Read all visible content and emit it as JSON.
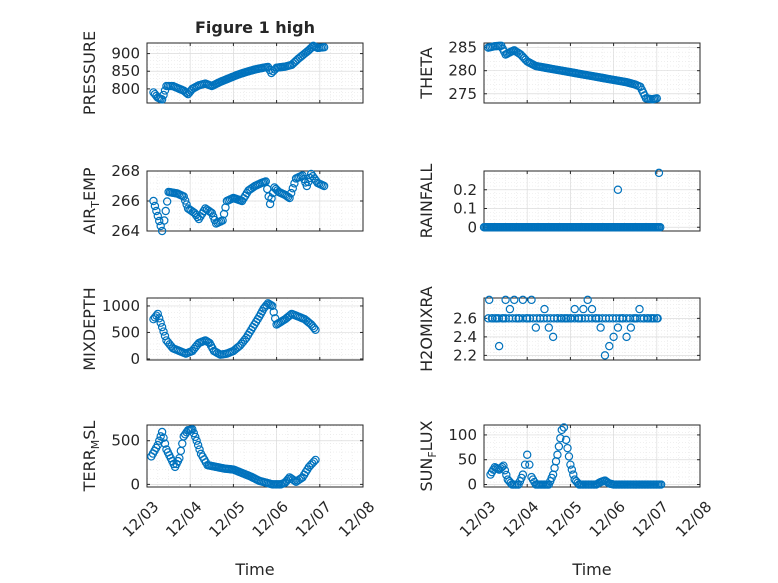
{
  "figure": {
    "title": "Figure 1 high"
  },
  "chart_data": [
    {
      "type": "scatter",
      "name": "PRESSURE",
      "title": "Figure 1 high",
      "ylabel": "PRESSURE",
      "xlabel": "",
      "xlim": [
        0,
        5
      ],
      "ylim": [
        760,
        930
      ],
      "yticks": [
        800,
        850,
        900
      ],
      "ytick_labels": [
        "800",
        "850",
        "900"
      ],
      "xticks": [
        0,
        1,
        2,
        3,
        4,
        5
      ],
      "xtick_labels": [
        "12/03",
        "12/04",
        "12/05",
        "12/06",
        "12/07",
        "12/08"
      ],
      "show_xtick_labels": false,
      "grid": true,
      "marker": "o",
      "color": "#0072bd",
      "keypoints": [
        [
          0.15,
          790
        ],
        [
          0.25,
          775
        ],
        [
          0.35,
          770
        ],
        [
          0.45,
          808
        ],
        [
          0.6,
          808
        ],
        [
          0.75,
          800
        ],
        [
          0.85,
          795
        ],
        [
          0.95,
          785
        ],
        [
          1.05,
          800
        ],
        [
          1.2,
          810
        ],
        [
          1.35,
          815
        ],
        [
          1.5,
          808
        ],
        [
          1.7,
          820
        ],
        [
          1.9,
          830
        ],
        [
          2.1,
          840
        ],
        [
          2.3,
          848
        ],
        [
          2.5,
          855
        ],
        [
          2.7,
          860
        ],
        [
          2.8,
          862
        ],
        [
          2.88,
          845
        ],
        [
          3.0,
          860
        ],
        [
          3.2,
          863
        ],
        [
          3.35,
          868
        ],
        [
          3.5,
          885
        ],
        [
          3.65,
          900
        ],
        [
          3.75,
          910
        ],
        [
          3.85,
          922
        ],
        [
          3.95,
          916
        ],
        [
          4.1,
          918
        ]
      ]
    },
    {
      "type": "scatter",
      "name": "THETA",
      "ylabel": "THETA",
      "xlabel": "",
      "xlim": [
        0,
        5
      ],
      "ylim": [
        273,
        286
      ],
      "yticks": [
        275,
        280,
        285
      ],
      "ytick_labels": [
        "275",
        "280",
        "285"
      ],
      "xticks": [
        0,
        1,
        2,
        3,
        4,
        5
      ],
      "xtick_labels": [
        "12/03",
        "12/04",
        "12/05",
        "12/06",
        "12/07",
        "12/08"
      ],
      "show_xtick_labels": false,
      "grid": true,
      "marker": "o",
      "color": "#0072bd",
      "keypoints": [
        [
          0.1,
          285
        ],
        [
          0.25,
          285.3
        ],
        [
          0.4,
          285.4
        ],
        [
          0.5,
          283.5
        ],
        [
          0.6,
          284
        ],
        [
          0.7,
          284.4
        ],
        [
          0.85,
          283.5
        ],
        [
          1.0,
          282
        ],
        [
          1.2,
          281
        ],
        [
          1.5,
          280.5
        ],
        [
          1.8,
          280
        ],
        [
          2.1,
          279.5
        ],
        [
          2.4,
          279
        ],
        [
          2.7,
          278.5
        ],
        [
          3.0,
          278
        ],
        [
          3.3,
          277.5
        ],
        [
          3.5,
          277
        ],
        [
          3.62,
          276.5
        ],
        [
          3.75,
          274
        ],
        [
          3.9,
          273.8
        ],
        [
          4.0,
          274
        ]
      ]
    },
    {
      "type": "scatter",
      "name": "AIR_TEMP",
      "ylabel": "AIR_TEMP",
      "ylabel_main": "AIR",
      "ylabel_sub": "T",
      "ylabel_rest": "EMP",
      "xlabel": "",
      "xlim": [
        0,
        5
      ],
      "ylim": [
        264,
        268
      ],
      "yticks": [
        264,
        266,
        268
      ],
      "ytick_labels": [
        "264",
        "266",
        "268"
      ],
      "xticks": [
        0,
        1,
        2,
        3,
        4,
        5
      ],
      "xtick_labels": [
        "12/03",
        "12/04",
        "12/05",
        "12/06",
        "12/07",
        "12/08"
      ],
      "show_xtick_labels": false,
      "grid": true,
      "marker": "o",
      "color": "#0072bd",
      "keypoints": [
        [
          0.15,
          266
        ],
        [
          0.25,
          265
        ],
        [
          0.35,
          264
        ],
        [
          0.4,
          264.7
        ],
        [
          0.5,
          266.6
        ],
        [
          0.7,
          266.5
        ],
        [
          0.85,
          266.3
        ],
        [
          0.95,
          265.5
        ],
        [
          1.1,
          265.2
        ],
        [
          1.2,
          264.8
        ],
        [
          1.35,
          265.5
        ],
        [
          1.5,
          265.2
        ],
        [
          1.6,
          264.5
        ],
        [
          1.75,
          264.7
        ],
        [
          1.85,
          266
        ],
        [
          2.0,
          266.2
        ],
        [
          2.2,
          266
        ],
        [
          2.35,
          266.7
        ],
        [
          2.5,
          267
        ],
        [
          2.65,
          267.2
        ],
        [
          2.75,
          267.3
        ],
        [
          2.85,
          265.8
        ],
        [
          2.95,
          266.9
        ],
        [
          3.05,
          266.6
        ],
        [
          3.2,
          266.4
        ],
        [
          3.3,
          266.2
        ],
        [
          3.45,
          267.5
        ],
        [
          3.6,
          267.7
        ],
        [
          3.7,
          267.0
        ],
        [
          3.8,
          267.8
        ],
        [
          3.95,
          267.2
        ],
        [
          4.1,
          267
        ]
      ]
    },
    {
      "type": "scatter",
      "name": "RAINFALL",
      "ylabel": "RAINFALL",
      "xlabel": "",
      "xlim": [
        0,
        5
      ],
      "ylim": [
        -0.02,
        0.3
      ],
      "yticks": [
        0,
        0.1,
        0.2
      ],
      "ytick_labels": [
        "0",
        "0.1",
        "0.2"
      ],
      "xticks": [
        0,
        1,
        2,
        3,
        4,
        5
      ],
      "xtick_labels": [
        "12/03",
        "12/04",
        "12/05",
        "12/06",
        "12/07",
        "12/08"
      ],
      "show_xtick_labels": false,
      "grid": true,
      "marker": "o",
      "color": "#0072bd",
      "zero_range": [
        0.0,
        4.1
      ],
      "spikes": [
        [
          3.1,
          0.2
        ],
        [
          4.05,
          0.29
        ]
      ]
    },
    {
      "type": "scatter",
      "name": "MIXDEPTH",
      "ylabel": "MIXDEPTH",
      "xlabel": "",
      "xlim": [
        0,
        5
      ],
      "ylim": [
        -20,
        1150
      ],
      "yticks": [
        0,
        500,
        1000
      ],
      "ytick_labels": [
        "0",
        "500",
        "1000"
      ],
      "xticks": [
        0,
        1,
        2,
        3,
        4,
        5
      ],
      "xtick_labels": [
        "12/03",
        "12/04",
        "12/05",
        "12/06",
        "12/07",
        "12/08"
      ],
      "show_xtick_labels": false,
      "grid": true,
      "marker": "o",
      "color": "#0072bd",
      "keypoints": [
        [
          0.15,
          750
        ],
        [
          0.25,
          850
        ],
        [
          0.35,
          600
        ],
        [
          0.45,
          350
        ],
        [
          0.6,
          200
        ],
        [
          0.75,
          150
        ],
        [
          0.9,
          100
        ],
        [
          1.05,
          150
        ],
        [
          1.2,
          300
        ],
        [
          1.35,
          350
        ],
        [
          1.45,
          300
        ],
        [
          1.55,
          150
        ],
        [
          1.7,
          80
        ],
        [
          1.85,
          100
        ],
        [
          2.0,
          150
        ],
        [
          2.15,
          250
        ],
        [
          2.3,
          400
        ],
        [
          2.45,
          600
        ],
        [
          2.6,
          800
        ],
        [
          2.7,
          950
        ],
        [
          2.8,
          1050
        ],
        [
          2.9,
          1000
        ],
        [
          3.0,
          650
        ],
        [
          3.2,
          750
        ],
        [
          3.35,
          850
        ],
        [
          3.5,
          800
        ],
        [
          3.65,
          750
        ],
        [
          3.8,
          650
        ],
        [
          3.9,
          550
        ]
      ]
    },
    {
      "type": "scatter",
      "name": "H2OMIXRA",
      "ylabel": "H2OMIXRA",
      "xlabel": "",
      "xlim": [
        0,
        5
      ],
      "ylim": [
        2.15,
        2.82
      ],
      "yticks": [
        2.2,
        2.4,
        2.6
      ],
      "ytick_labels": [
        "2.2",
        "2.4",
        "2.6"
      ],
      "xticks": [
        0,
        1,
        2,
        3,
        4,
        5
      ],
      "xtick_labels": [
        "12/03",
        "12/04",
        "12/05",
        "12/06",
        "12/07",
        "12/08"
      ],
      "show_xtick_labels": false,
      "grid": true,
      "marker": "o",
      "color": "#0072bd",
      "points": [
        [
          0.12,
          2.8
        ],
        [
          0.2,
          2.6
        ],
        [
          0.3,
          2.6
        ],
        [
          0.35,
          2.3
        ],
        [
          0.45,
          2.6
        ],
        [
          0.5,
          2.8
        ],
        [
          0.6,
          2.7
        ],
        [
          0.7,
          2.8
        ],
        [
          0.8,
          2.6
        ],
        [
          0.9,
          2.8
        ],
        [
          1.0,
          2.6
        ],
        [
          1.1,
          2.8
        ],
        [
          1.2,
          2.5
        ],
        [
          1.3,
          2.6
        ],
        [
          1.4,
          2.7
        ],
        [
          1.5,
          2.5
        ],
        [
          1.6,
          2.4
        ],
        [
          1.7,
          2.6
        ],
        [
          1.8,
          2.6
        ],
        [
          1.9,
          2.6
        ],
        [
          2.0,
          2.6
        ],
        [
          2.1,
          2.7
        ],
        [
          2.2,
          2.6
        ],
        [
          2.3,
          2.7
        ],
        [
          2.4,
          2.8
        ],
        [
          2.5,
          2.7
        ],
        [
          2.6,
          2.6
        ],
        [
          2.7,
          2.5
        ],
        [
          2.8,
          2.2
        ],
        [
          2.9,
          2.3
        ],
        [
          3.0,
          2.4
        ],
        [
          3.1,
          2.5
        ],
        [
          3.2,
          2.6
        ],
        [
          3.3,
          2.4
        ],
        [
          3.4,
          2.5
        ],
        [
          3.5,
          2.6
        ],
        [
          3.6,
          2.7
        ],
        [
          3.7,
          2.6
        ],
        [
          3.8,
          2.6
        ],
        [
          3.9,
          2.6
        ],
        [
          4.0,
          2.6
        ]
      ],
      "fill_value": 2.6,
      "fill_range": [
        0.1,
        4.1
      ]
    },
    {
      "type": "scatter",
      "name": "TERR_MSL",
      "ylabel": "TERR_MSL",
      "ylabel_main": "TERR",
      "ylabel_sub": "M",
      "ylabel_rest": "SL",
      "xlabel": "Time",
      "xlim": [
        0,
        5
      ],
      "ylim": [
        -30,
        680
      ],
      "yticks": [
        0,
        500
      ],
      "ytick_labels": [
        "0",
        "500"
      ],
      "xticks": [
        0,
        1,
        2,
        3,
        4,
        5
      ],
      "xtick_labels": [
        "12/03",
        "12/04",
        "12/05",
        "12/06",
        "12/07",
        "12/08"
      ],
      "show_xtick_labels": true,
      "grid": true,
      "marker": "o",
      "color": "#0072bd",
      "keypoints": [
        [
          0.1,
          320
        ],
        [
          0.25,
          450
        ],
        [
          0.35,
          600
        ],
        [
          0.45,
          400
        ],
        [
          0.55,
          300
        ],
        [
          0.65,
          200
        ],
        [
          0.75,
          300
        ],
        [
          0.85,
          550
        ],
        [
          0.95,
          620
        ],
        [
          1.05,
          630
        ],
        [
          1.15,
          500
        ],
        [
          1.25,
          350
        ],
        [
          1.4,
          220
        ],
        [
          1.6,
          200
        ],
        [
          1.8,
          180
        ],
        [
          2.0,
          170
        ],
        [
          2.2,
          130
        ],
        [
          2.4,
          90
        ],
        [
          2.6,
          40
        ],
        [
          2.75,
          20
        ],
        [
          2.9,
          0
        ],
        [
          3.1,
          0
        ],
        [
          3.2,
          20
        ],
        [
          3.3,
          80
        ],
        [
          3.45,
          30
        ],
        [
          3.6,
          80
        ],
        [
          3.75,
          200
        ],
        [
          3.9,
          280
        ]
      ]
    },
    {
      "type": "scatter",
      "name": "SUN_FLUX",
      "ylabel": "SUN_FLUX",
      "ylabel_main": "SUN",
      "ylabel_sub": "F",
      "ylabel_rest": "LUX",
      "xlabel": "Time",
      "xlim": [
        0,
        5
      ],
      "ylim": [
        -5,
        120
      ],
      "yticks": [
        0,
        50,
        100
      ],
      "ytick_labels": [
        "0",
        "50",
        "100"
      ],
      "xticks": [
        0,
        1,
        2,
        3,
        4,
        5
      ],
      "xtick_labels": [
        "12/03",
        "12/04",
        "12/05",
        "12/06",
        "12/07",
        "12/08"
      ],
      "show_xtick_labels": true,
      "grid": true,
      "marker": "o",
      "color": "#0072bd",
      "keypoints": [
        [
          0.15,
          20
        ],
        [
          0.25,
          35
        ],
        [
          0.35,
          30
        ],
        [
          0.45,
          38
        ],
        [
          0.55,
          10
        ],
        [
          0.65,
          0
        ],
        [
          0.8,
          0
        ],
        [
          0.9,
          20
        ],
        [
          0.95,
          40
        ],
        [
          1.0,
          60
        ],
        [
          1.05,
          40
        ],
        [
          1.1,
          15
        ],
        [
          1.2,
          0
        ],
        [
          1.5,
          0
        ],
        [
          1.6,
          20
        ],
        [
          1.7,
          60
        ],
        [
          1.8,
          110
        ],
        [
          1.85,
          115
        ],
        [
          1.9,
          90
        ],
        [
          2.0,
          40
        ],
        [
          2.1,
          10
        ],
        [
          2.2,
          0
        ],
        [
          2.6,
          0
        ],
        [
          2.7,
          5
        ],
        [
          2.8,
          8
        ],
        [
          2.9,
          2
        ],
        [
          3.0,
          0
        ],
        [
          4.1,
          0
        ]
      ]
    }
  ]
}
